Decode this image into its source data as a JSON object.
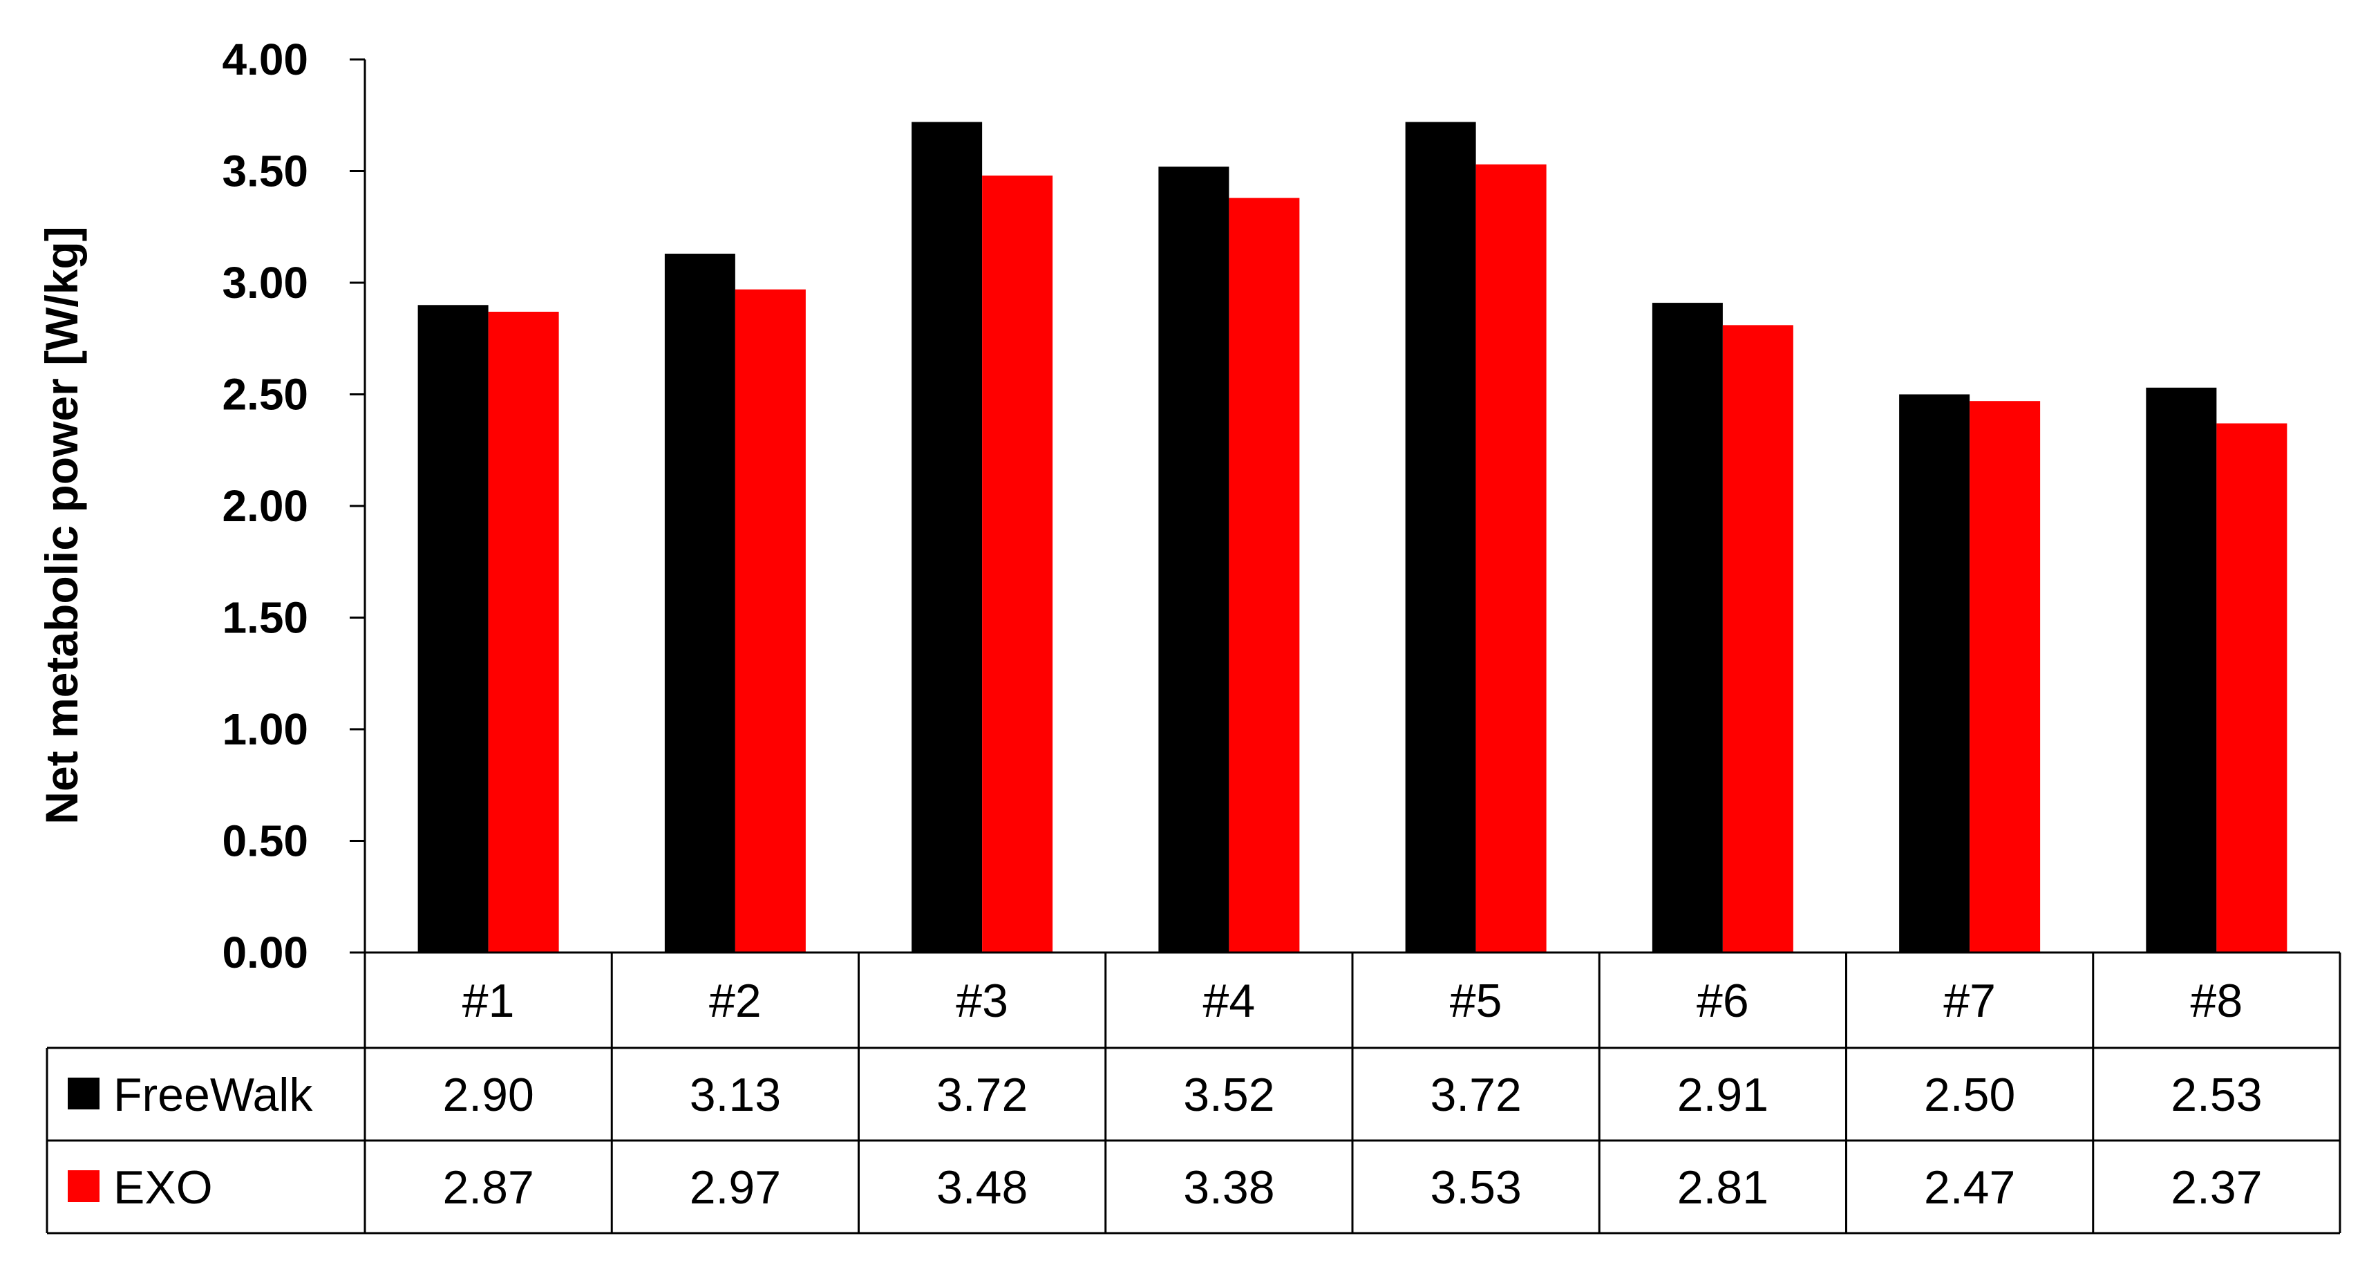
{
  "chart_data": {
    "type": "bar",
    "title": "",
    "xlabel": "",
    "ylabel": "Net metabolic power [W/kg]",
    "ylim": [
      0,
      4
    ],
    "yticks": [
      "0.00",
      "0.50",
      "1.00",
      "1.50",
      "2.00",
      "2.50",
      "3.00",
      "3.50",
      "4.00"
    ],
    "grid": false,
    "legend": "data-table-left",
    "categories": [
      "#1",
      "#2",
      "#3",
      "#4",
      "#5",
      "#6",
      "#7",
      "#8"
    ],
    "series": [
      {
        "name": "FreeWalk",
        "color": "#000000",
        "values": [
          2.9,
          3.13,
          3.72,
          3.52,
          3.72,
          2.91,
          2.5,
          2.53
        ],
        "labels": [
          "2.90",
          "3.13",
          "3.72",
          "3.52",
          "3.72",
          "2.91",
          "2.50",
          "2.53"
        ]
      },
      {
        "name": "EXO",
        "color": "#ff0000",
        "values": [
          2.87,
          2.97,
          3.48,
          3.38,
          3.53,
          2.81,
          2.47,
          2.37
        ],
        "labels": [
          "2.87",
          "2.97",
          "3.48",
          "3.38",
          "3.53",
          "2.81",
          "2.47",
          "2.37"
        ]
      }
    ]
  }
}
